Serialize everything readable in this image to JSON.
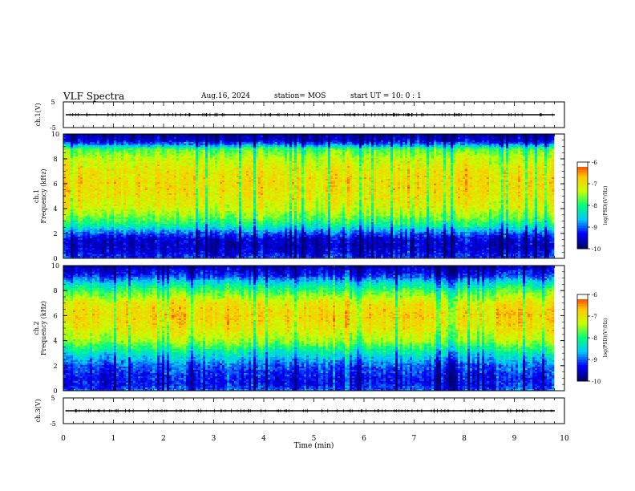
{
  "header": {
    "title": "VLF Spectra",
    "date": "Aug.16, 2024",
    "station": "station= MOS",
    "start": "start  UT  =   10: 0  : 1"
  },
  "colors": {
    "scale": [
      "#00006a",
      "#0000ff",
      "#00c8ff",
      "#00ff78",
      "#c8ff00",
      "#ffc800",
      "#ff1e00",
      "#ffffff"
    ]
  },
  "chart_data": [
    {
      "type": "line",
      "name": "ch1-waveform",
      "ylabel": "ch.1(V)",
      "ylim": [
        -5,
        5
      ],
      "y_ticks": [
        "5",
        "-5"
      ],
      "x": [
        0,
        10
      ],
      "values": [
        0,
        0
      ]
    },
    {
      "type": "heatmap",
      "name": "ch1-spectrogram",
      "ylabel_line1": "ch.1",
      "ylabel_line2": "Frequency (kHz)",
      "ylim": [
        0,
        10
      ],
      "y_ticks": [
        "0",
        "2",
        "4",
        "6",
        "8",
        "10"
      ],
      "xlim": [
        0,
        10
      ],
      "intensity_profile": [
        {
          "f": 0.0,
          "psd": -9.2
        },
        {
          "f": 0.5,
          "psd": -9.5
        },
        {
          "f": 1.0,
          "psd": -9.6
        },
        {
          "f": 1.5,
          "psd": -9.5
        },
        {
          "f": 2.0,
          "psd": -9.0
        },
        {
          "f": 2.5,
          "psd": -8.3
        },
        {
          "f": 3.0,
          "psd": -7.8
        },
        {
          "f": 4.0,
          "psd": -7.2
        },
        {
          "f": 5.0,
          "psd": -7.0
        },
        {
          "f": 6.0,
          "psd": -6.9
        },
        {
          "f": 7.0,
          "psd": -7.0
        },
        {
          "f": 8.0,
          "psd": -7.3
        },
        {
          "f": 8.8,
          "psd": -7.8
        },
        {
          "f": 9.1,
          "psd": -8.8
        },
        {
          "f": 9.5,
          "psd": -9.6
        },
        {
          "f": 10.0,
          "psd": -9.8
        }
      ],
      "colorbar": {
        "label": "log(PSD)(V²/Hz)",
        "ticks": [
          "-6",
          "-7",
          "-8",
          "-9",
          "-10"
        ],
        "range": [
          -10,
          -6
        ]
      }
    },
    {
      "type": "heatmap",
      "name": "ch2-spectrogram",
      "ylabel_line1": "ch.2",
      "ylabel_line2": "Frequency (kHz)",
      "ylim": [
        0,
        10
      ],
      "y_ticks": [
        "0",
        "2",
        "4",
        "6",
        "8",
        "10"
      ],
      "xlim": [
        0,
        10
      ],
      "intensity_profile": [
        {
          "f": 0.0,
          "psd": -9.0
        },
        {
          "f": 0.5,
          "psd": -9.3
        },
        {
          "f": 1.0,
          "psd": -9.3
        },
        {
          "f": 2.0,
          "psd": -9.0
        },
        {
          "f": 3.0,
          "psd": -8.3
        },
        {
          "f": 4.0,
          "psd": -7.4
        },
        {
          "f": 5.0,
          "psd": -7.0
        },
        {
          "f": 6.0,
          "psd": -6.8
        },
        {
          "f": 7.0,
          "psd": -7.0
        },
        {
          "f": 8.0,
          "psd": -7.8
        },
        {
          "f": 8.6,
          "psd": -8.4
        },
        {
          "f": 9.2,
          "psd": -9.2
        },
        {
          "f": 10.0,
          "psd": -9.7
        }
      ],
      "colorbar": {
        "label": "log(PSD)(V²/Hz)",
        "ticks": [
          "-6",
          "-7",
          "-8",
          "-9",
          "-10"
        ],
        "range": [
          -10,
          -6
        ]
      }
    },
    {
      "type": "line",
      "name": "ch3-waveform",
      "ylabel": "ch.3(V)",
      "ylim": [
        -5,
        5
      ],
      "y_ticks": [
        "5",
        "-5"
      ],
      "x": [
        0,
        10
      ],
      "values": [
        0,
        0
      ]
    }
  ],
  "xaxis": {
    "xlabel": "Time  (min)",
    "ticks": [
      "0",
      "1",
      "2",
      "3",
      "4",
      "5",
      "6",
      "7",
      "8",
      "9",
      "10"
    ],
    "xlim": [
      0,
      10
    ]
  }
}
